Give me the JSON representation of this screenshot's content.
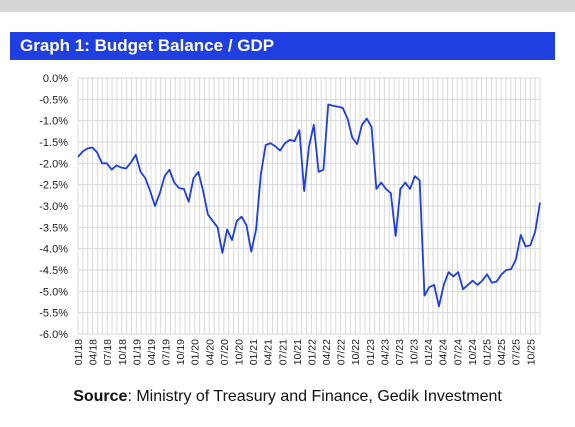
{
  "header": {
    "title": "Graph 1: Budget Balance / GDP"
  },
  "footer": {
    "source_label": "Source",
    "source_text": ": Ministry of Treasury and Finance, Gedik Investment"
  },
  "colors": {
    "line": "#1f3fe0",
    "title_bg": "#1f3fe0",
    "grid": "#d9d9d9"
  },
  "chart_data": {
    "type": "line",
    "title": "Graph 1: Budget Balance / GDP",
    "xlabel": "",
    "ylabel": "",
    "ylim": [
      -6.0,
      0.0
    ],
    "y_ticks": [
      "0.0%",
      "-0.5%",
      "-1.0%",
      "-1.5%",
      "-2.0%",
      "-2.5%",
      "-3.0%",
      "-3.5%",
      "-4.0%",
      "-4.5%",
      "-5.0%",
      "-5.5%",
      "-6.0%"
    ],
    "x_tick_labels": [
      "01/18",
      "04/18",
      "07/18",
      "10/18",
      "01/19",
      "04/19",
      "07/19",
      "10/19",
      "01/20",
      "04/20",
      "07/20",
      "10/20",
      "01/21",
      "04/21",
      "07/21",
      "10/21",
      "01/22",
      "04/22",
      "07/22",
      "10/22",
      "01/23",
      "04/23",
      "07/23",
      "10/23",
      "01/24",
      "04/24",
      "07/24",
      "10/24",
      "01/25",
      "04/25",
      "07/25",
      "10/25"
    ],
    "grid": true,
    "legend": "none",
    "series": [
      {
        "values": [
          -1.85,
          -1.72,
          -1.65,
          -1.63,
          -1.75,
          -2.0,
          -2.0,
          -2.15,
          -2.05,
          -2.1,
          -2.12,
          -1.98,
          -1.8,
          -2.2,
          -2.35,
          -2.65,
          -3.0,
          -2.7,
          -2.3,
          -2.15,
          -2.45,
          -2.58,
          -2.6,
          -2.9,
          -2.35,
          -2.2,
          -2.65,
          -3.2,
          -3.35,
          -3.5,
          -4.1,
          -3.55,
          -3.8,
          -3.35,
          -3.25,
          -3.45,
          -4.07,
          -3.55,
          -2.25,
          -1.57,
          -1.53,
          -1.6,
          -1.7,
          -1.53,
          -1.45,
          -1.48,
          -1.22,
          -2.65,
          -1.6,
          -1.1,
          -2.2,
          -2.15,
          -0.62,
          -0.65,
          -0.67,
          -0.7,
          -0.95,
          -1.4,
          -1.55,
          -1.1,
          -0.95,
          -1.15,
          -2.6,
          -2.45,
          -2.6,
          -2.7,
          -3.7,
          -2.6,
          -2.45,
          -2.6,
          -2.3,
          -2.4,
          -5.1,
          -4.9,
          -4.85,
          -5.35,
          -4.85,
          -4.55,
          -4.65,
          -4.55,
          -4.95,
          -4.85,
          -4.75,
          -4.85,
          -4.75,
          -4.6,
          -4.8,
          -4.77,
          -4.6,
          -4.5,
          -4.48,
          -4.25,
          -3.68,
          -3.95,
          -3.92,
          -3.6,
          -2.92
        ]
      }
    ]
  }
}
